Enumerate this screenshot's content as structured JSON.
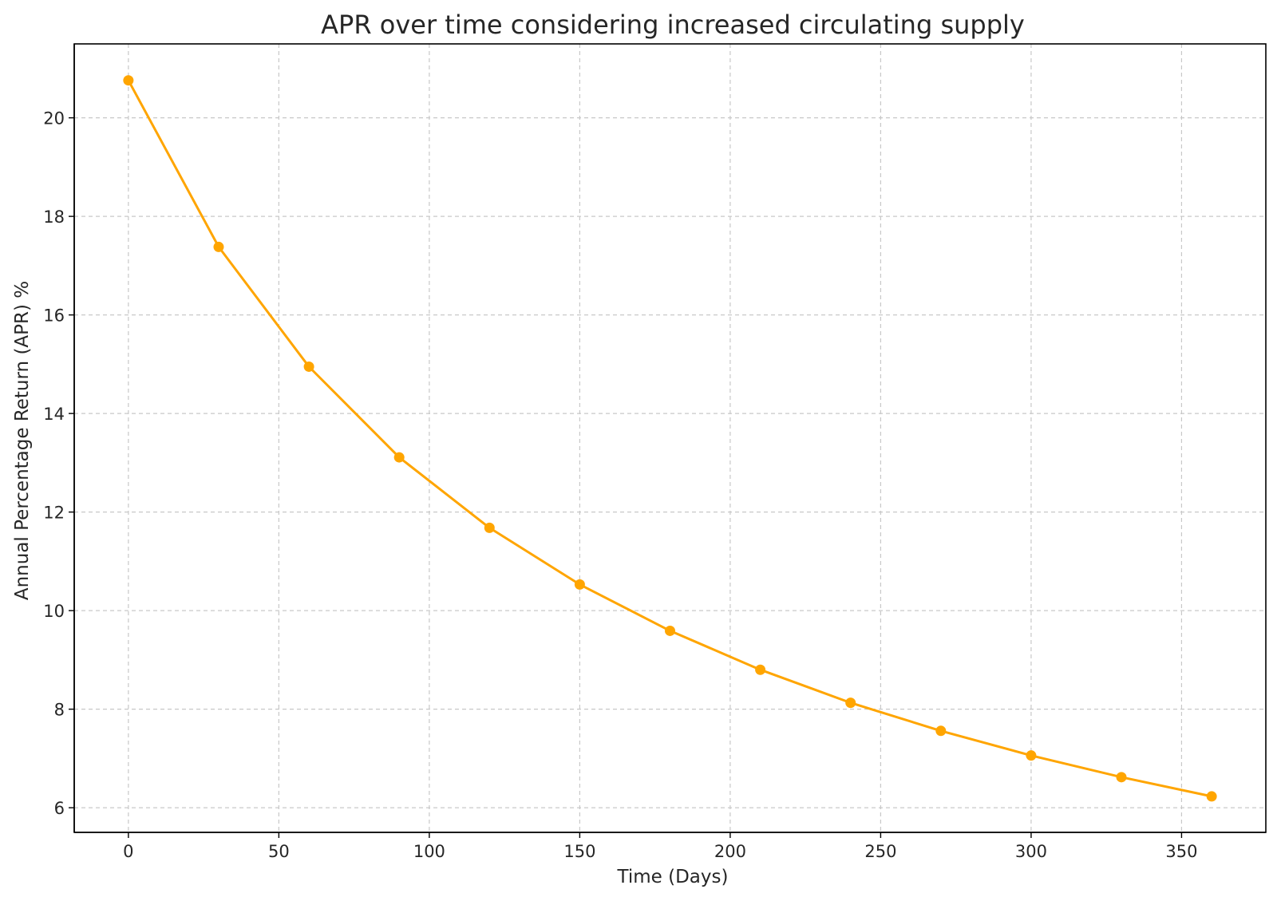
{
  "chart_data": {
    "type": "line",
    "title": "APR over time considering increased circulating supply",
    "xlabel": "Time (Days)",
    "ylabel": "Annual Percentage Return (APR) %",
    "xlim": [
      -18,
      378
    ],
    "ylim": [
      5.5,
      21.5
    ],
    "xticks": [
      0,
      50,
      100,
      150,
      200,
      250,
      300,
      350
    ],
    "yticks": [
      6,
      8,
      10,
      12,
      14,
      16,
      18,
      20
    ],
    "grid": true,
    "colors": {
      "line": "#FFA500"
    },
    "series": [
      {
        "x": [
          0,
          30,
          60,
          90,
          120,
          150,
          180,
          210,
          240,
          270,
          300,
          330,
          360
        ],
        "values": [
          20.76,
          17.38,
          14.95,
          13.11,
          11.68,
          10.53,
          9.59,
          8.8,
          8.13,
          7.56,
          7.06,
          6.62,
          6.23
        ]
      }
    ]
  }
}
